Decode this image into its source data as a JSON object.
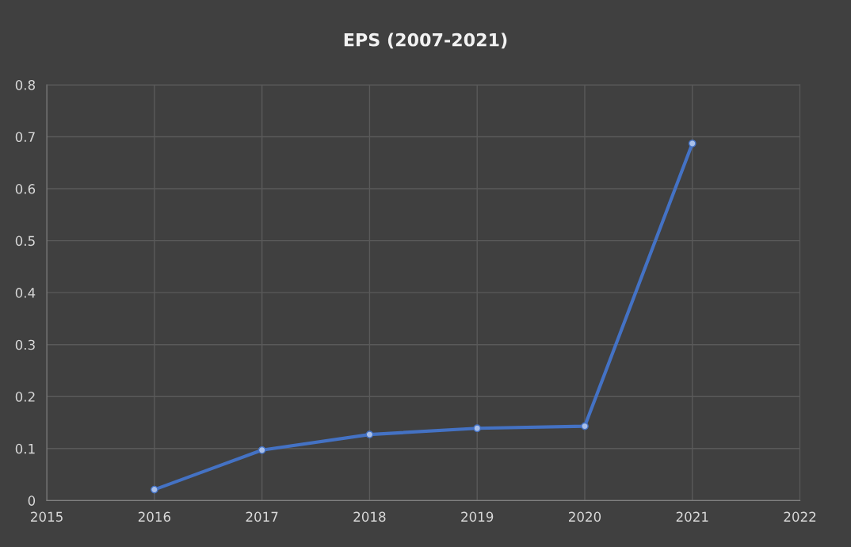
{
  "chart_data": {
    "type": "line",
    "title": "EPS (2007-2021)",
    "x": [
      2016,
      2017,
      2018,
      2019,
      2020,
      2021
    ],
    "series": [
      {
        "color": "#4472c4",
        "values": [
          0.021,
          0.097,
          0.127,
          0.139,
          0.143,
          0.687
        ]
      }
    ],
    "xlim": [
      2015,
      2022
    ],
    "xticks": [
      2015,
      2016,
      2017,
      2018,
      2019,
      2020,
      2021,
      2022
    ],
    "ylim": [
      0,
      0.8
    ],
    "yticks": [
      0,
      0.1,
      0.2,
      0.3,
      0.4,
      0.5,
      0.6,
      0.7,
      0.8
    ],
    "grid": true,
    "marker": "circle",
    "line_style": "solid"
  }
}
